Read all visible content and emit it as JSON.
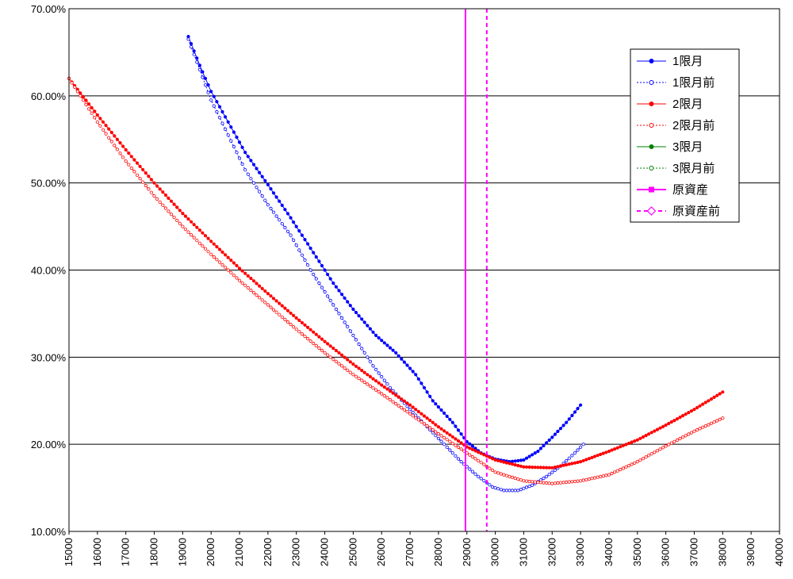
{
  "chart_data": {
    "type": "line",
    "title": "",
    "xlabel": "",
    "ylabel": "",
    "xlim": [
      15000,
      40000
    ],
    "ylim": [
      10,
      70
    ],
    "x_ticks": [
      "15000",
      "16000",
      "17000",
      "18000",
      "19000",
      "20000",
      "21000",
      "22000",
      "23000",
      "24000",
      "25000",
      "26000",
      "27000",
      "28000",
      "29000",
      "30000",
      "31000",
      "32000",
      "33000",
      "34000",
      "35000",
      "36000",
      "37000",
      "38000",
      "39000",
      "40000"
    ],
    "y_ticks": [
      "10.00%",
      "20.00%",
      "30.00%",
      "40.00%",
      "50.00%",
      "60.00%",
      "70.00%"
    ],
    "y_tick_values": [
      10,
      20,
      30,
      40,
      50,
      60,
      70
    ],
    "grid": "horizontal",
    "legend_position": "top-right",
    "series": [
      {
        "name": "1限月",
        "color": "#0000ff",
        "style": "solid",
        "marker": "filled",
        "x": [
          19200,
          19600,
          20000,
          20600,
          21200,
          22000,
          22800,
          23600,
          24300,
          25000,
          25800,
          26500,
          27200,
          27800,
          28500,
          29000,
          29500,
          30000,
          30500,
          31000,
          31500,
          32000,
          32500,
          33000
        ],
        "values": [
          66.8,
          63.5,
          60.5,
          57.0,
          53.5,
          49.8,
          46.0,
          42.0,
          38.5,
          35.5,
          32.5,
          30.5,
          28.0,
          25.0,
          22.5,
          20.3,
          19.0,
          18.3,
          18.0,
          18.2,
          19.2,
          20.8,
          22.5,
          24.5
        ]
      },
      {
        "name": "1限月前",
        "color": "#0000ff",
        "style": "dotted",
        "marker": "open",
        "x": [
          19200,
          19600,
          20000,
          20600,
          21200,
          22000,
          22800,
          23500,
          24200,
          25000,
          25700,
          26300,
          27000,
          27600,
          28200,
          28800,
          29400,
          29900,
          30300,
          30800,
          31300,
          31800,
          32300,
          32800,
          33100
        ],
        "values": [
          66.5,
          63.0,
          59.5,
          55.5,
          51.5,
          47.5,
          44.0,
          40.0,
          36.5,
          32.5,
          29.0,
          26.5,
          24.0,
          22.0,
          20.0,
          18.0,
          16.3,
          15.1,
          14.7,
          14.7,
          15.3,
          16.3,
          17.5,
          19.0,
          20.0
        ]
      },
      {
        "name": "2限月",
        "color": "#ff0000",
        "style": "solid",
        "marker": "filled",
        "x": [
          15000,
          16000,
          17000,
          18000,
          19000,
          20000,
          21000,
          22000,
          23000,
          24000,
          25000,
          26000,
          27000,
          28000,
          29000,
          30000,
          31000,
          32000,
          33000,
          34000,
          35000,
          36000,
          37000,
          38000
        ],
        "values": [
          62.0,
          57.8,
          53.8,
          50.0,
          46.5,
          43.3,
          40.2,
          37.3,
          34.5,
          31.8,
          29.2,
          26.8,
          24.5,
          22.0,
          19.7,
          18.2,
          17.4,
          17.3,
          18.0,
          19.2,
          20.5,
          22.2,
          24.0,
          26.0
        ]
      },
      {
        "name": "2限月前",
        "color": "#ff0000",
        "style": "dotted",
        "marker": "open",
        "x": [
          15000,
          16000,
          17000,
          18000,
          19000,
          20000,
          21000,
          22000,
          23000,
          24000,
          25000,
          26000,
          27000,
          28000,
          29000,
          30000,
          31000,
          32000,
          33000,
          34000,
          35000,
          36000,
          37000,
          38000
        ],
        "values": [
          62.0,
          57.0,
          52.5,
          48.5,
          45.0,
          41.8,
          38.8,
          36.0,
          33.2,
          30.5,
          28.0,
          25.8,
          23.5,
          21.2,
          19.0,
          16.8,
          15.8,
          15.5,
          15.8,
          16.5,
          18.0,
          19.8,
          21.5,
          23.0
        ]
      },
      {
        "name": "3限月",
        "color": "#008000",
        "style": "solid",
        "marker": "filled",
        "x": [],
        "values": []
      },
      {
        "name": "3限月前",
        "color": "#008000",
        "style": "dotted",
        "marker": "open",
        "x": [],
        "values": []
      },
      {
        "name": "原資産",
        "color": "#ff00ff",
        "style": "solid",
        "marker": "square",
        "vertical_x": 28950
      },
      {
        "name": "原資産前",
        "color": "#ff00ff",
        "style": "dashed",
        "marker": "open-diamond",
        "vertical_x": 29700
      }
    ]
  }
}
